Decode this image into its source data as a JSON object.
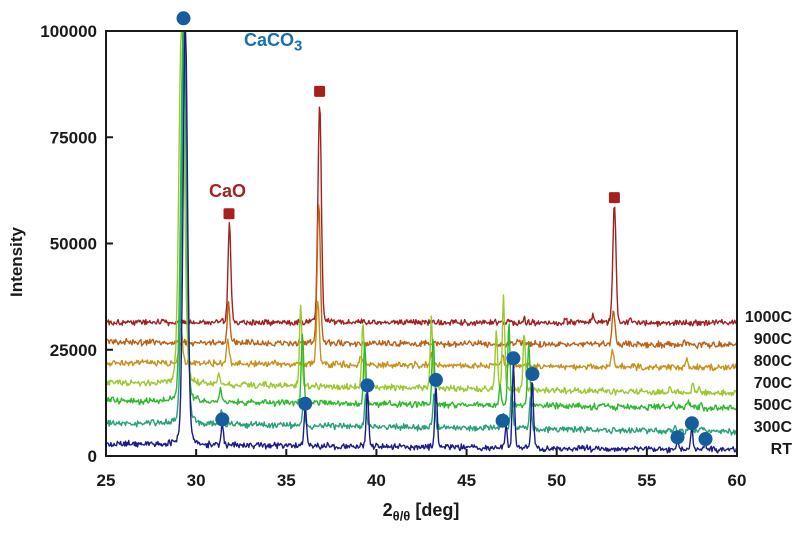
{
  "figure": {
    "background": "#ffffff"
  },
  "chart_data": {
    "type": "line",
    "title": "",
    "ylabel": "Intensity",
    "xlabel": "2θ/θ [deg]",
    "xlabel_parts": {
      "prefix": "2",
      "sub": "θ/θ",
      "suffix": " [deg]"
    },
    "xlim": [
      25,
      60
    ],
    "ylim": [
      0,
      100000
    ],
    "x_ticks": [
      25,
      30,
      35,
      40,
      45,
      50,
      55,
      60
    ],
    "y_ticks": [
      0,
      25000,
      50000,
      75000,
      100000
    ],
    "grid": false,
    "frame_color": "#1a1a1a",
    "legend_position": "right-outside",
    "annotations": {
      "caco3": {
        "main": "CaCO",
        "sub": "3",
        "color": "#1a6fae"
      },
      "cao": {
        "text": "CaO",
        "color": "#a22424"
      }
    },
    "markers": {
      "caco3": {
        "phase": "CaCO3",
        "symbol": "circle",
        "color": "#155d9c",
        "points": [
          [
            29.3,
            103000
          ],
          [
            31.45,
            8600
          ],
          [
            36.05,
            12300
          ],
          [
            39.5,
            16600
          ],
          [
            43.3,
            17900
          ],
          [
            47.0,
            8300
          ],
          [
            47.6,
            23000
          ],
          [
            48.65,
            19300
          ],
          [
            56.7,
            4400
          ],
          [
            57.5,
            7700
          ],
          [
            58.25,
            4000
          ]
        ]
      },
      "cao": {
        "phase": "CaO",
        "symbol": "square",
        "color": "#a91f1f",
        "points": [
          [
            31.82,
            57000
          ],
          [
            36.85,
            85800
          ],
          [
            53.2,
            60800
          ]
        ]
      }
    },
    "series": [
      {
        "name": "1000C",
        "label": "1000C",
        "color": "#a32020",
        "baseline": 31500,
        "slope": -5,
        "noise": 900,
        "seed": 101,
        "peaks": [
          [
            31.85,
            23500,
            0.11
          ],
          [
            36.85,
            52000,
            0.13
          ],
          [
            53.2,
            28000,
            0.12
          ],
          [
            48.2,
            1000,
            0.07
          ],
          [
            50.5,
            1300,
            0.07
          ],
          [
            52.0,
            1600,
            0.07
          ],
          [
            54.1,
            1400,
            0.07
          ]
        ]
      },
      {
        "name": "900C",
        "label": "900C",
        "color": "#bd6118",
        "baseline": 26800,
        "slope": -20,
        "noise": 900,
        "seed": 102,
        "peaks": [
          [
            31.8,
            9200,
            0.1
          ],
          [
            36.8,
            33000,
            0.12
          ],
          [
            47.8,
            1000,
            0.07
          ],
          [
            53.15,
            8500,
            0.11
          ],
          [
            57.1,
            1300,
            0.08
          ]
        ]
      },
      {
        "name": "800C",
        "label": "800C",
        "color": "#c8921d",
        "baseline": 22000,
        "slope": -35,
        "noise": 900,
        "seed": 103,
        "peaks": [
          [
            29.15,
            8000,
            0.13
          ],
          [
            31.75,
            6000,
            0.1
          ],
          [
            36.75,
            15000,
            0.11
          ],
          [
            39.15,
            2200,
            0.08
          ],
          [
            43.05,
            2800,
            0.08
          ],
          [
            47.0,
            2500,
            0.08
          ],
          [
            47.45,
            3000,
            0.08
          ],
          [
            53.1,
            3800,
            0.1
          ],
          [
            57.2,
            2000,
            0.08
          ]
        ]
      },
      {
        "name": "700C",
        "label": "700C",
        "color": "#9cc832",
        "baseline": 17300,
        "slope": -75,
        "noise": 900,
        "seed": 104,
        "peaks": [
          [
            29.2,
            87000,
            0.21
          ],
          [
            31.25,
            2600,
            0.08
          ],
          [
            35.8,
            19500,
            0.09
          ],
          [
            39.25,
            15000,
            0.09
          ],
          [
            43.05,
            16500,
            0.09
          ],
          [
            46.65,
            13500,
            0.09
          ],
          [
            47.05,
            21500,
            0.09
          ],
          [
            48.2,
            13500,
            0.09
          ],
          [
            56.3,
            1500,
            0.07
          ],
          [
            57.55,
            2600,
            0.08
          ],
          [
            57.9,
            1100,
            0.07
          ]
        ]
      },
      {
        "name": "500C",
        "label": "500C",
        "color": "#2db92d",
        "baseline": 13000,
        "slope": -50,
        "noise": 900,
        "seed": 105,
        "peaks": [
          [
            29.3,
            92000,
            0.2
          ],
          [
            31.35,
            3000,
            0.08
          ],
          [
            35.9,
            16500,
            0.09
          ],
          [
            39.35,
            14500,
            0.09
          ],
          [
            43.15,
            15500,
            0.09
          ],
          [
            46.85,
            4800,
            0.08
          ],
          [
            47.35,
            19500,
            0.09
          ],
          [
            48.45,
            14500,
            0.09
          ],
          [
            56.45,
            1300,
            0.07
          ],
          [
            57.3,
            1900,
            0.08
          ],
          [
            58.0,
            1100,
            0.07
          ]
        ]
      },
      {
        "name": "300C",
        "label": "300C",
        "color": "#27a177",
        "baseline": 7800,
        "slope": -60,
        "noise": 900,
        "seed": 106,
        "peaks": [
          [
            29.35,
            95000,
            0.19
          ],
          [
            31.4,
            3600,
            0.08
          ],
          [
            35.95,
            5000,
            0.09
          ],
          [
            39.4,
            7500,
            0.09
          ],
          [
            43.2,
            8000,
            0.09
          ],
          [
            47.05,
            3600,
            0.08
          ],
          [
            47.5,
            9000,
            0.09
          ],
          [
            48.55,
            7000,
            0.09
          ],
          [
            56.55,
            1400,
            0.07
          ],
          [
            57.4,
            2600,
            0.08
          ],
          [
            58.1,
            1200,
            0.07
          ]
        ]
      },
      {
        "name": "RT",
        "label": "RT",
        "color": "#1c1c8c",
        "baseline": 2800,
        "slope": -40,
        "noise": 900,
        "seed": 107,
        "peaks": [
          [
            29.4,
            101000,
            0.17
          ],
          [
            31.45,
            5200,
            0.08
          ],
          [
            36.05,
            9000,
            0.09
          ],
          [
            39.5,
            13400,
            0.09
          ],
          [
            43.3,
            14800,
            0.09
          ],
          [
            47.2,
            5400,
            0.08
          ],
          [
            47.6,
            19800,
            0.09
          ],
          [
            48.65,
            16000,
            0.09
          ],
          [
            56.7,
            2000,
            0.07
          ],
          [
            57.5,
            5200,
            0.08
          ],
          [
            58.25,
            1800,
            0.07
          ]
        ]
      }
    ]
  }
}
